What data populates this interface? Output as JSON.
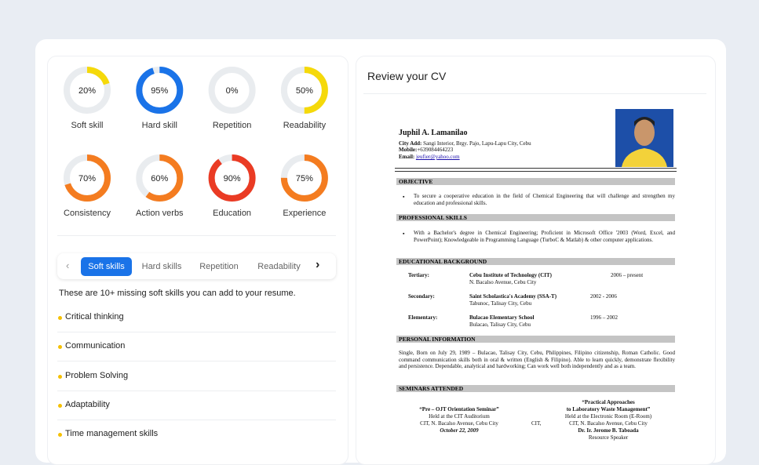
{
  "gauges": [
    {
      "name": "Soft skill",
      "value": 20,
      "label": "20%",
      "color": "#f5d90a"
    },
    {
      "name": "Hard skill",
      "value": 95,
      "label": "95%",
      "color": "#1a73e8"
    },
    {
      "name": "Repetition",
      "value": 0,
      "label": "0%",
      "color": "#f5d90a"
    },
    {
      "name": "Readability",
      "value": 50,
      "label": "50%",
      "color": "#f5d90a"
    },
    {
      "name": "Consistency",
      "value": 70,
      "label": "70%",
      "color": "#f47c20"
    },
    {
      "name": "Action verbs",
      "value": 60,
      "label": "60%",
      "color": "#f47c20"
    },
    {
      "name": "Education",
      "value": 90,
      "label": "90%",
      "color": "#ea3b24"
    },
    {
      "name": "Experience",
      "value": 75,
      "label": "75%",
      "color": "#f47c20"
    }
  ],
  "tabs": [
    "Soft skills",
    "Hard skills",
    "Repetition",
    "Readability"
  ],
  "missing_text": "These are 10+ missing soft skills you can add to your resume.",
  "skills": [
    "Critical thinking",
    "Communication",
    "Problem Solving",
    "Adaptability",
    "Time management skills"
  ],
  "review_title": "Review your CV",
  "cv": {
    "name": "Juphil A. Lamanilao",
    "address_label": "City Add:",
    "address": "Sangi Interior, Brgy. Pajo, Lapu-Lapu City, Cebu",
    "mobile_label": "Mobile:",
    "mobile": "+639084464223",
    "email_label": "Email:",
    "email": "jeufier@yahoo.com",
    "objective": {
      "heading": "OBJECTIVE",
      "text": "To secure a cooperative education in the field of Chemical Engineering that will challenge and strengthen my education and professional skills."
    },
    "professional": {
      "heading": "PROFESSIONAL SKILLS",
      "text": "With a Bachelor's degree in Chemical Engineering; Proficient in Microsoft Office '2003 (Word, Excel, and PowerPoint); Knowledgeable in Programming Language (TurboC & Matlab) & other computer applications."
    },
    "education": {
      "heading": "EDUCATIONAL BACKGROUND",
      "rows": [
        {
          "level": "Tertiary:",
          "school": "Cebu Institute of Technology (CIT)",
          "address": "N. Bacalso Avenue, Cebu City",
          "years": "2006 – present"
        },
        {
          "level": "Secondary:",
          "school": "Saint Scholastica's Academy (SSA-T)",
          "address": "Tabunoc, Talisay City, Cebu",
          "years": "2002 - 2006"
        },
        {
          "level": "Elementary:",
          "school": "Bulacao Elementary School",
          "address": "Bulacao, Talisay City, Cebu",
          "years": "1996 – 2002"
        }
      ]
    },
    "personal": {
      "heading": "PERSONAL INFORMATION",
      "text": "Single, Born on July 29, 1989 – Bulacao, Talisay City, Cebu, Philippines, Filipino citizenship, Roman Catholic. Good command communication skills both in oral & written (English & Filipino). Able to learn quickly, demonstrate flexibility and persistence. Dependable, analytical and hardworking; Can work well both independently and as a team."
    },
    "seminars": {
      "heading": "SEMINARS ATTENDED",
      "first": {
        "title": "“Pre – OJT Orientation Seminar”",
        "place": "Held at the CIT Auditorium",
        "address": "CIT, N. Bacalso Avenue, Cebu City",
        "date": "October 22, 2009"
      },
      "second": {
        "title1": "“Practical Approaches",
        "title2": "to Laboratory Waste Management”",
        "place": "Held at the Electronic Room (E-Room)",
        "prefix": "CIT,",
        "address": "CIT, N. Bacalso Avenue, Cebu City",
        "speaker": "Dr. Ir. Jerome B. Taboada",
        "role": "Resource Speaker"
      }
    }
  }
}
